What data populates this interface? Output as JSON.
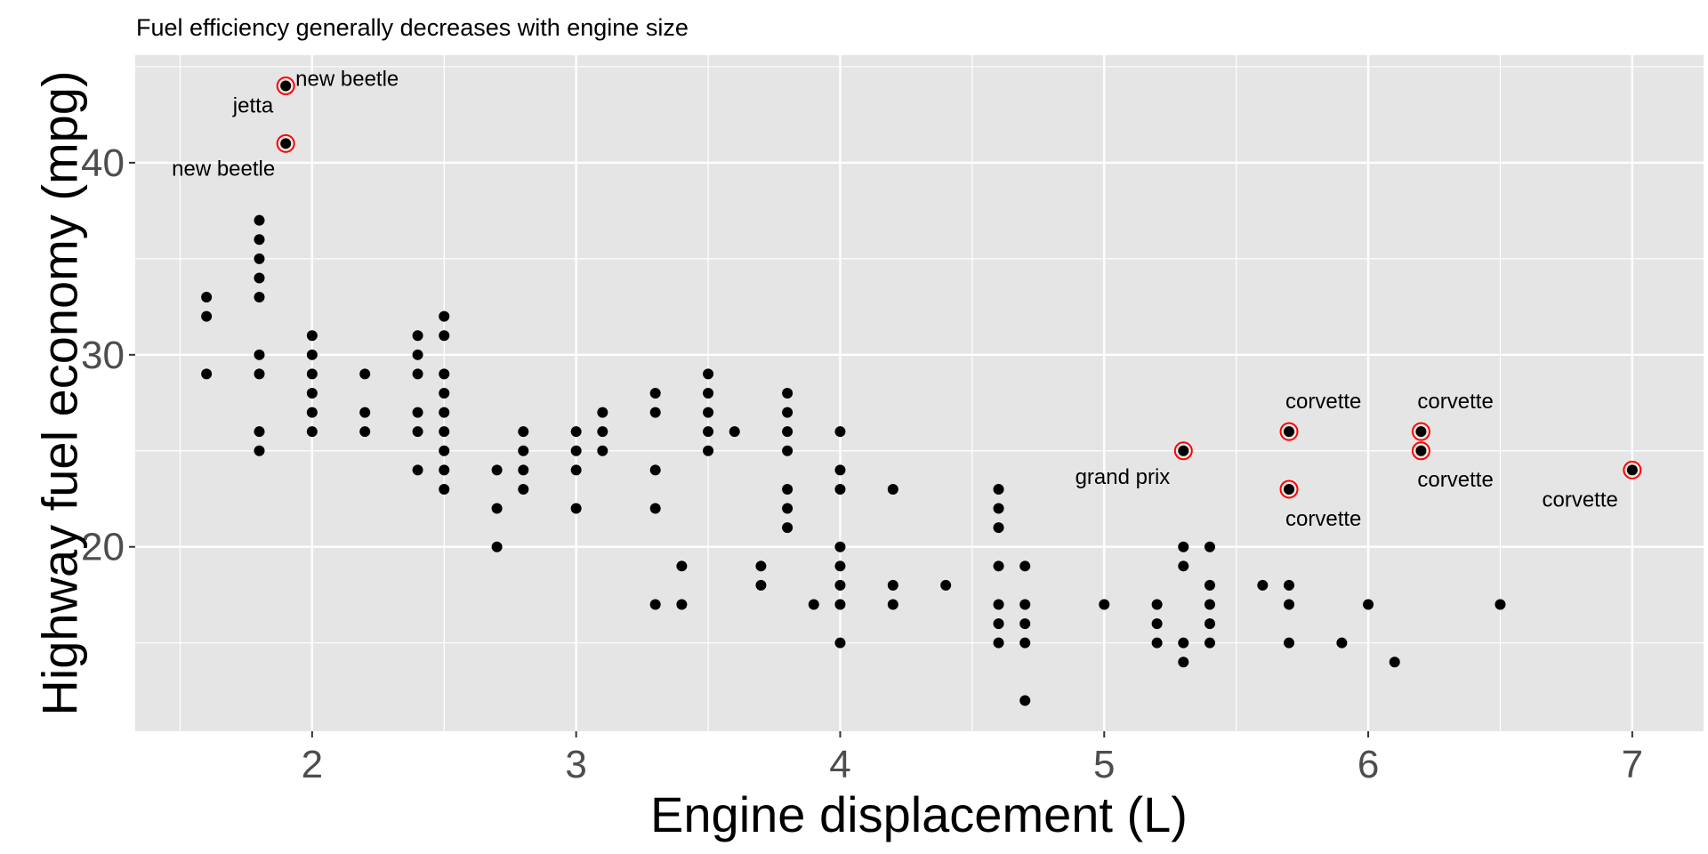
{
  "chart_data": {
    "type": "scatter",
    "title": "Fuel efficiency generally decreases with engine size",
    "xlabel": "Engine displacement (L)",
    "ylabel": "Highway fuel economy (mpg)",
    "xlim": [
      1.33,
      7.27
    ],
    "ylim": [
      10.4,
      45.6
    ],
    "xticks": [
      2,
      3,
      4,
      5,
      6,
      7
    ],
    "yticks": [
      20,
      30,
      40
    ],
    "grid": true,
    "colors": {
      "panel": "#e5e5e5",
      "grid": "#ffffff",
      "point": "#000000",
      "highlight": "#ff0000",
      "tick_text": "#4d4d4d"
    },
    "points": [
      [
        1.6,
        33
      ],
      [
        1.6,
        32
      ],
      [
        1.6,
        29
      ],
      [
        1.8,
        37
      ],
      [
        1.8,
        36
      ],
      [
        1.8,
        35
      ],
      [
        1.8,
        34
      ],
      [
        1.8,
        33
      ],
      [
        1.8,
        30
      ],
      [
        1.8,
        29
      ],
      [
        1.8,
        26
      ],
      [
        1.8,
        25
      ],
      [
        1.9,
        44
      ],
      [
        1.9,
        41
      ],
      [
        2.0,
        31
      ],
      [
        2.0,
        30
      ],
      [
        2.0,
        29
      ],
      [
        2.0,
        28
      ],
      [
        2.0,
        27
      ],
      [
        2.0,
        26
      ],
      [
        2.2,
        29
      ],
      [
        2.2,
        27
      ],
      [
        2.2,
        26
      ],
      [
        2.4,
        31
      ],
      [
        2.4,
        30
      ],
      [
        2.4,
        29
      ],
      [
        2.4,
        27
      ],
      [
        2.4,
        26
      ],
      [
        2.4,
        24
      ],
      [
        2.5,
        32
      ],
      [
        2.5,
        31
      ],
      [
        2.5,
        29
      ],
      [
        2.5,
        28
      ],
      [
        2.5,
        27
      ],
      [
        2.5,
        26
      ],
      [
        2.5,
        25
      ],
      [
        2.5,
        24
      ],
      [
        2.5,
        23
      ],
      [
        2.7,
        24
      ],
      [
        2.7,
        22
      ],
      [
        2.7,
        20
      ],
      [
        2.8,
        26
      ],
      [
        2.8,
        25
      ],
      [
        2.8,
        24
      ],
      [
        2.8,
        23
      ],
      [
        3.0,
        26
      ],
      [
        3.0,
        25
      ],
      [
        3.0,
        24
      ],
      [
        3.0,
        22
      ],
      [
        3.1,
        27
      ],
      [
        3.1,
        26
      ],
      [
        3.1,
        25
      ],
      [
        3.3,
        28
      ],
      [
        3.3,
        27
      ],
      [
        3.3,
        24
      ],
      [
        3.3,
        22
      ],
      [
        3.3,
        17
      ],
      [
        3.4,
        19
      ],
      [
        3.4,
        17
      ],
      [
        3.5,
        29
      ],
      [
        3.5,
        28
      ],
      [
        3.5,
        27
      ],
      [
        3.5,
        26
      ],
      [
        3.5,
        25
      ],
      [
        3.6,
        26
      ],
      [
        3.7,
        19
      ],
      [
        3.7,
        18
      ],
      [
        3.8,
        28
      ],
      [
        3.8,
        27
      ],
      [
        3.8,
        26
      ],
      [
        3.8,
        25
      ],
      [
        3.8,
        23
      ],
      [
        3.8,
        22
      ],
      [
        3.8,
        21
      ],
      [
        3.9,
        17
      ],
      [
        4.0,
        26
      ],
      [
        4.0,
        24
      ],
      [
        4.0,
        23
      ],
      [
        4.0,
        20
      ],
      [
        4.0,
        19
      ],
      [
        4.0,
        18
      ],
      [
        4.0,
        17
      ],
      [
        4.0,
        15
      ],
      [
        4.2,
        23
      ],
      [
        4.2,
        18
      ],
      [
        4.2,
        17
      ],
      [
        4.4,
        18
      ],
      [
        4.6,
        23
      ],
      [
        4.6,
        22
      ],
      [
        4.6,
        21
      ],
      [
        4.6,
        19
      ],
      [
        4.6,
        17
      ],
      [
        4.6,
        16
      ],
      [
        4.6,
        15
      ],
      [
        4.7,
        19
      ],
      [
        4.7,
        17
      ],
      [
        4.7,
        16
      ],
      [
        4.7,
        15
      ],
      [
        4.7,
        12
      ],
      [
        5.0,
        17
      ],
      [
        5.2,
        17
      ],
      [
        5.2,
        16
      ],
      [
        5.2,
        15
      ],
      [
        5.3,
        25
      ],
      [
        5.3,
        20
      ],
      [
        5.3,
        19
      ],
      [
        5.3,
        15
      ],
      [
        5.3,
        14
      ],
      [
        5.4,
        20
      ],
      [
        5.4,
        18
      ],
      [
        5.4,
        17
      ],
      [
        5.4,
        16
      ],
      [
        5.4,
        15
      ],
      [
        5.6,
        18
      ],
      [
        5.7,
        26
      ],
      [
        5.7,
        23
      ],
      [
        5.7,
        18
      ],
      [
        5.7,
        17
      ],
      [
        5.7,
        15
      ],
      [
        5.9,
        15
      ],
      [
        6.0,
        17
      ],
      [
        6.1,
        14
      ],
      [
        6.2,
        26
      ],
      [
        6.2,
        25
      ],
      [
        6.5,
        17
      ],
      [
        7.0,
        24
      ]
    ],
    "highlighted": [
      {
        "x": 1.9,
        "y": 44,
        "label": "new beetle"
      },
      {
        "x": 1.9,
        "y": 44,
        "label": "jetta"
      },
      {
        "x": 1.9,
        "y": 41,
        "label": "new beetle"
      },
      {
        "x": 5.3,
        "y": 25,
        "label": "grand prix"
      },
      {
        "x": 5.7,
        "y": 26,
        "label": "corvette"
      },
      {
        "x": 5.7,
        "y": 23,
        "label": "corvette"
      },
      {
        "x": 6.2,
        "y": 26,
        "label": "corvette"
      },
      {
        "x": 6.2,
        "y": 25,
        "label": "corvette"
      },
      {
        "x": 7.0,
        "y": 24,
        "label": "corvette"
      }
    ]
  }
}
